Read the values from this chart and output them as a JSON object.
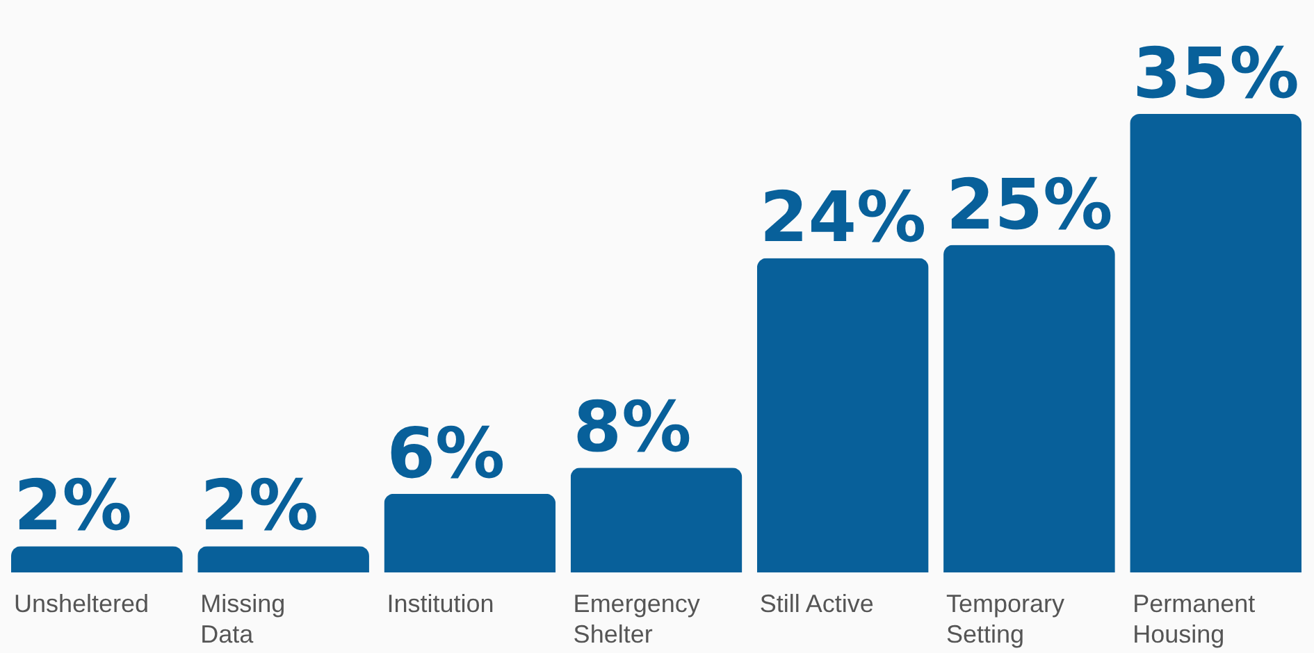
{
  "chart_data": {
    "type": "bar",
    "categories": [
      "Unsheltered",
      "Missing Data",
      "Institution",
      "Emergency Shelter",
      "Still Active",
      "Temporary Setting",
      "Permanent Housing"
    ],
    "values": [
      2,
      2,
      6,
      8,
      24,
      25,
      35
    ],
    "value_labels": [
      "2%",
      "2%",
      "6%",
      "8%",
      "24%",
      "25%",
      "35%"
    ],
    "color": "#08609a"
  }
}
